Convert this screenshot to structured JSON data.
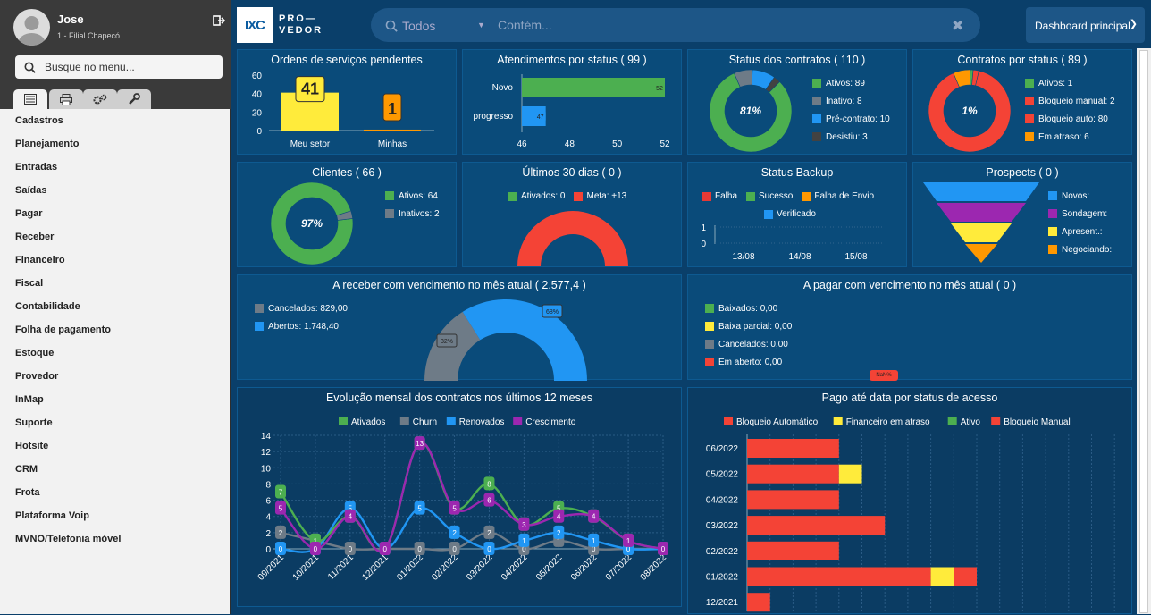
{
  "user": {
    "name": "Jose",
    "branch": "1 - Filial Chapecó"
  },
  "menu": {
    "search_placeholder": "Busque no menu...",
    "tabs": [
      "list-icon",
      "printer-icon",
      "gears-icon",
      "wrench-icon"
    ],
    "items": [
      "Cadastros",
      "Planejamento",
      "Entradas",
      "Saídas",
      "Pagar",
      "Receber",
      "Financeiro",
      "Fiscal",
      "Contabilidade",
      "Folha de pagamento",
      "Estoque",
      "Provedor",
      "InMap",
      "Suporte",
      "Hotsite",
      "CRM",
      "Frota",
      "Plataforma Voip",
      "MVNO/Telefonia móvel"
    ]
  },
  "topbar": {
    "logo_mark": "IXC",
    "logo_text_1": "PRO—",
    "logo_text_2": "VEDOR",
    "filter": "Todos",
    "search_placeholder": "Contém...",
    "dashboard": "Dashboard principal"
  },
  "colors": {
    "green": "#4caf50",
    "gray": "#6e7b87",
    "blue": "#2196f3",
    "red": "#f44336",
    "yellow": "#ffeb3b",
    "orange": "#ff9800",
    "purple": "#9c27b0",
    "dark": "#424242"
  },
  "cards": {
    "ordens": {
      "title": "Ordens de serviços pendentes"
    },
    "atend": {
      "title": "Atendimentos por status ( 99 )"
    },
    "status_contratos": {
      "title": "Status dos contratos ( 110 )",
      "center": "81%",
      "legend": [
        "Ativos: 89",
        "Inativo: 8",
        "Pré-contrato: 10",
        "Desistiu: 3"
      ]
    },
    "contratos_status": {
      "title": "Contratos por status ( 89 )",
      "center": "1%",
      "legend": [
        "Ativos: 1",
        "Bloqueio manual: 2",
        "Bloqueio auto: 80",
        "Em atraso: 6"
      ]
    },
    "clientes": {
      "title": "Clientes ( 66 )",
      "center": "97%",
      "legend": [
        "Ativos: 64",
        "Inativos: 2"
      ]
    },
    "ultimos": {
      "title": "Últimos 30 dias ( 0 )",
      "legend": [
        "Ativados: 0",
        "Meta: +13"
      ]
    },
    "backup": {
      "title": "Status Backup",
      "legend": [
        "Falha",
        "Sucesso",
        "Falha de Envio",
        "Verificado"
      ]
    },
    "prospects": {
      "title": "Prospects ( 0 )",
      "legend": [
        "Novos:",
        "Sondagem:",
        "Apresent.:",
        "Negociando:"
      ]
    },
    "receber": {
      "title": "A receber com vencimento no mês atual ( 2.577,4 )",
      "legend": [
        "Cancelados: 829,00",
        "Abertos: 1.748,40"
      ]
    },
    "pagar": {
      "title": "A pagar com vencimento no mês atual ( 0 )",
      "legend": [
        "Baixados: 0,00",
        "Baixa parcial: 0,00",
        "Cancelados: 0,00",
        "Em aberto: 0,00"
      ],
      "stub_label": "NaN%"
    },
    "evolucao": {
      "title": "Evolução mensal dos contratos nos últimos 12 meses"
    },
    "pago": {
      "title": "Pago até data por status de acesso"
    }
  },
  "chart_data": [
    {
      "id": "ordens",
      "type": "bar",
      "categories": [
        "Meu setor",
        "Minhas"
      ],
      "values": [
        41,
        1
      ],
      "ylim": [
        0,
        60
      ],
      "yticks": [
        0,
        20,
        40,
        60
      ]
    },
    {
      "id": "atend",
      "type": "bar",
      "orientation": "horizontal",
      "categories": [
        "Novo",
        "progresso"
      ],
      "values": [
        52,
        47
      ],
      "xlim": [
        46,
        52
      ],
      "xticks": [
        46,
        48,
        50,
        52
      ]
    },
    {
      "id": "status_contratos",
      "type": "pie",
      "labels": [
        "Ativos",
        "Inativo",
        "Pré-contrato",
        "Desistiu"
      ],
      "values": [
        89,
        8,
        10,
        3
      ]
    },
    {
      "id": "contratos_status",
      "type": "pie",
      "labels": [
        "Ativos",
        "Bloqueio manual",
        "Bloqueio auto",
        "Em atraso"
      ],
      "values": [
        1,
        2,
        80,
        6
      ]
    },
    {
      "id": "clientes",
      "type": "pie",
      "labels": [
        "Ativos",
        "Inativos"
      ],
      "values": [
        64,
        2
      ]
    },
    {
      "id": "ultimos",
      "type": "pie",
      "labels": [
        "Ativados",
        "Meta"
      ],
      "values": [
        0,
        13
      ]
    },
    {
      "id": "backup",
      "type": "line",
      "categories": [
        "13/08",
        "14/08",
        "15/08"
      ],
      "yticks": [
        0,
        1
      ]
    },
    {
      "id": "prospects",
      "type": "funnel",
      "labels": [
        "Novos",
        "Sondagem",
        "Apresent.",
        "Negociando"
      ],
      "values": [
        0,
        0,
        0,
        0
      ]
    },
    {
      "id": "receber",
      "type": "pie",
      "labels": [
        "Cancelados",
        "Abertos"
      ],
      "values": [
        829.0,
        1748.4
      ],
      "slice_labels": [
        "32%",
        "68%"
      ]
    },
    {
      "id": "pagar",
      "type": "pie",
      "labels": [
        "Baixados",
        "Baixa parcial",
        "Cancelados",
        "Em aberto"
      ],
      "values": [
        0,
        0,
        0,
        0
      ]
    },
    {
      "id": "evolucao",
      "type": "line",
      "categories": [
        "09/2021",
        "10/2021",
        "11/2021",
        "12/2021",
        "01/2022",
        "02/2022",
        "03/2022",
        "04/2022",
        "05/2022",
        "06/2022",
        "07/2022",
        "08/2022"
      ],
      "ylim": [
        0,
        14
      ],
      "yticks": [
        0,
        2,
        4,
        6,
        8,
        10,
        12,
        14
      ],
      "series": [
        {
          "name": "Ativados",
          "values": [
            7,
            1,
            4,
            0,
            13,
            5,
            8,
            3,
            5,
            4,
            1,
            0
          ]
        },
        {
          "name": "Churn",
          "values": [
            2,
            1,
            0,
            0,
            0,
            0,
            2,
            0,
            1,
            0,
            0,
            0
          ]
        },
        {
          "name": "Renovados",
          "values": [
            0,
            0,
            5,
            0,
            5,
            2,
            0,
            1,
            2,
            1,
            0,
            0
          ]
        },
        {
          "name": "Crescimento",
          "values": [
            5,
            0,
            4,
            0,
            13,
            5,
            6,
            3,
            4,
            4,
            1,
            0
          ]
        }
      ]
    },
    {
      "id": "pago",
      "type": "bar",
      "orientation": "horizontal",
      "stacked": true,
      "categories": [
        "06/2022",
        "05/2022",
        "04/2022",
        "03/2022",
        "02/2022",
        "01/2022",
        "12/2021"
      ],
      "series": [
        {
          "name": "Bloqueio Automático",
          "values": [
            4,
            4,
            4,
            6,
            4,
            8,
            1
          ]
        },
        {
          "name": "Financeiro em atraso",
          "values": [
            0,
            1,
            0,
            0,
            0,
            1,
            0
          ]
        },
        {
          "name": "Ativo",
          "values": [
            0,
            0,
            0,
            0,
            0,
            0,
            0
          ]
        },
        {
          "name": "Bloqueio Manual",
          "values": [
            0,
            0,
            0,
            0,
            0,
            1,
            0
          ]
        }
      ]
    }
  ]
}
